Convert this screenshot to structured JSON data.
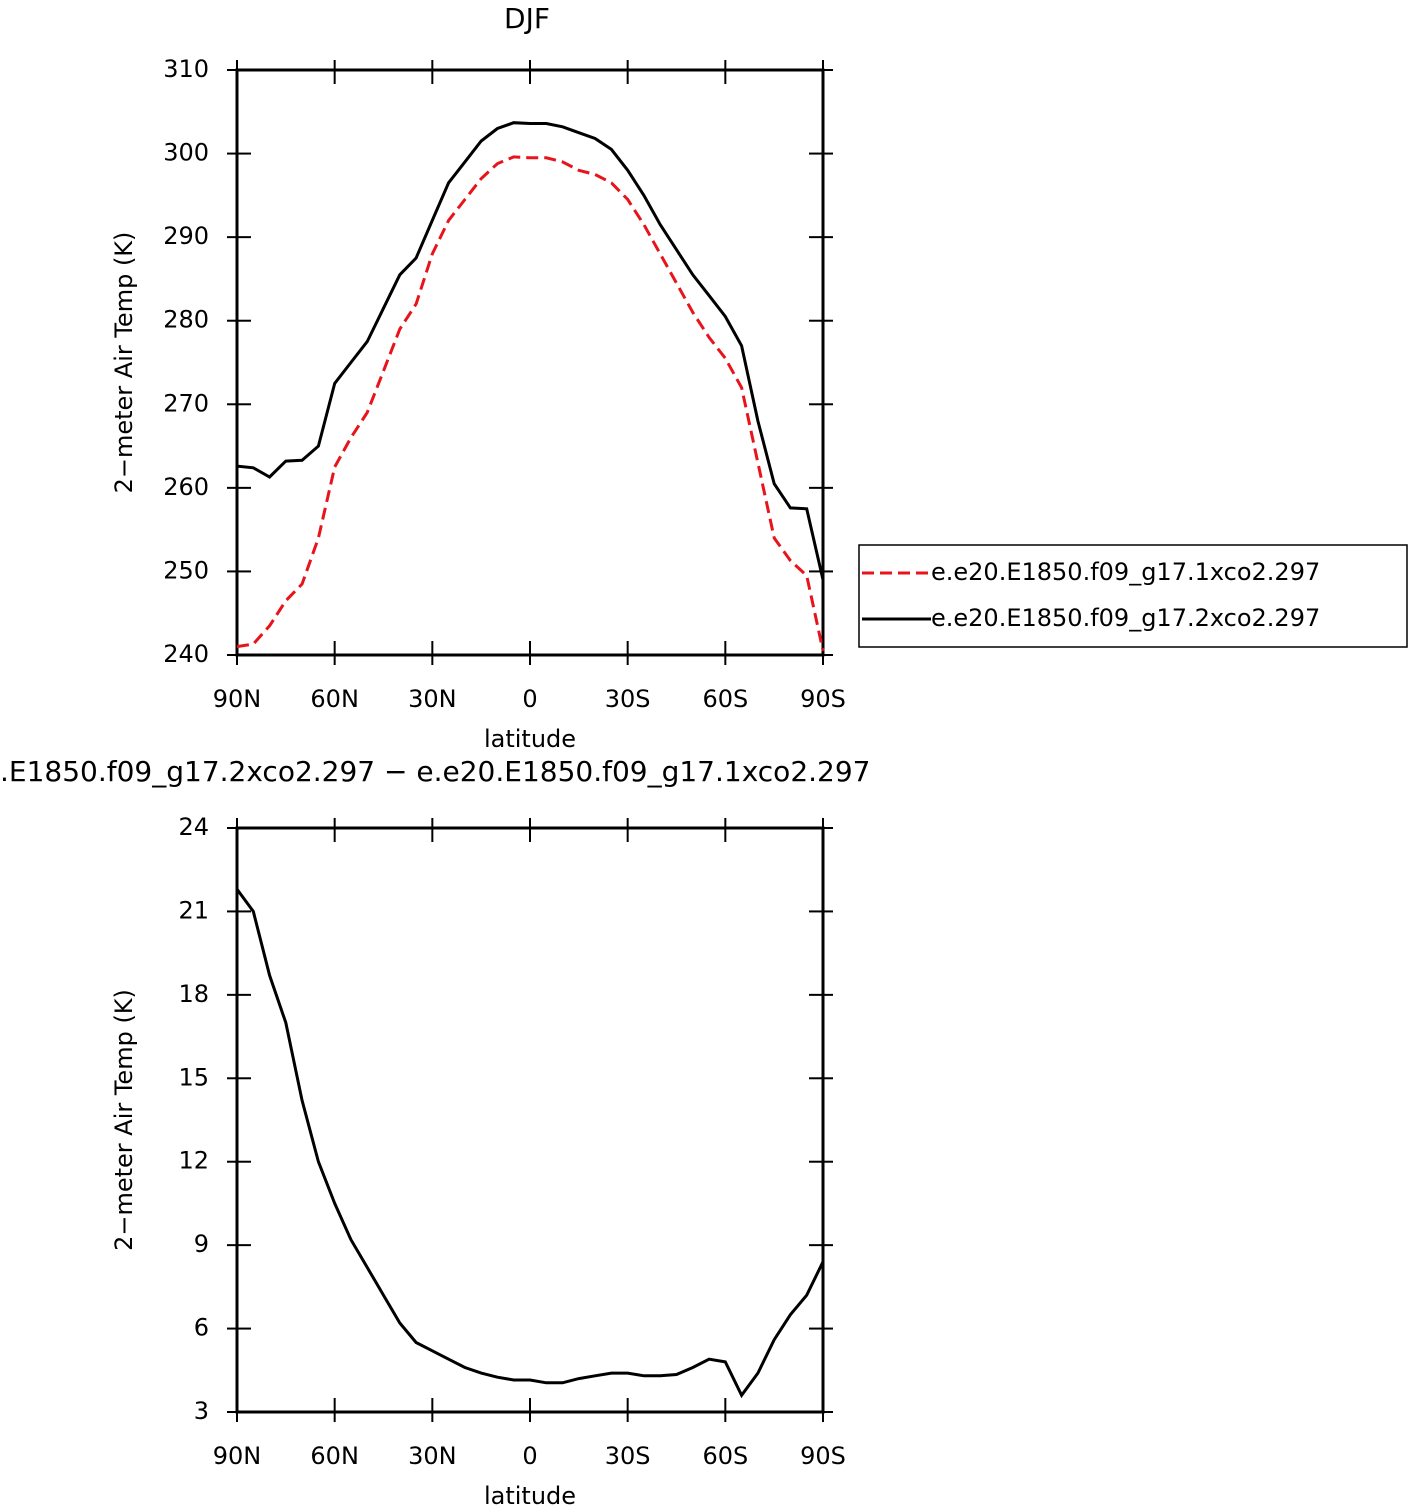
{
  "chart_data": [
    {
      "type": "line",
      "title": "DJF",
      "xlabel": "latitude",
      "ylabel": "2−meter Air Temp (K)",
      "x": [
        90,
        85,
        80,
        75,
        70,
        65,
        60,
        55,
        50,
        45,
        40,
        35,
        30,
        25,
        20,
        15,
        10,
        5,
        0,
        -5,
        -10,
        -15,
        -20,
        -25,
        -30,
        -35,
        -40,
        -45,
        -50,
        -55,
        -60,
        -65,
        -70,
        -75,
        -80,
        -85,
        -90
      ],
      "series": [
        {
          "name": "e.e20.E1850.f09_g17.1xco2.297",
          "color": "#e8141b",
          "style": "dashed",
          "values": [
            241,
            241.3,
            243.5,
            246.5,
            248.5,
            254,
            262.5,
            266,
            269,
            274,
            279,
            282,
            288,
            292,
            294.5,
            297,
            298.8,
            299.6,
            299.5,
            299.5,
            299,
            298,
            297.5,
            296.5,
            294.5,
            291.5,
            288,
            284.5,
            281,
            278,
            275.5,
            272,
            263,
            254,
            251.3,
            249.5,
            240.5
          ]
        },
        {
          "name": "e.e20.E1850.f09_g17.2xco2.297",
          "color": "#000000",
          "style": "solid",
          "values": [
            262.6,
            262.4,
            261.3,
            263.2,
            263.3,
            265,
            272.5,
            275,
            277.5,
            281.5,
            285.5,
            287.5,
            292,
            296.5,
            299,
            301.5,
            303,
            303.7,
            303.6,
            303.6,
            303.2,
            302.5,
            301.8,
            300.5,
            298,
            295,
            291.5,
            288.5,
            285.5,
            283,
            280.5,
            277,
            268,
            260.5,
            257.6,
            257.5,
            249
          ]
        }
      ],
      "xlim": [
        90,
        -90
      ],
      "xticks": [
        {
          "value": 90,
          "label": "90N"
        },
        {
          "value": 60,
          "label": "60N"
        },
        {
          "value": 30,
          "label": "30N"
        },
        0,
        {
          "value": -30,
          "label": "30S"
        },
        {
          "value": -60,
          "label": "60S"
        },
        {
          "value": -90,
          "label": "90S"
        }
      ],
      "ylim": [
        240,
        310
      ],
      "yticks": [
        240,
        250,
        260,
        270,
        280,
        290,
        300,
        310
      ],
      "legend": "right"
    },
    {
      "type": "line",
      "title": ".E1850.f09_g17.2xco2.297 − e.e20.E1850.f09_g17.1xco2.297",
      "xlabel": "latitude",
      "ylabel": "2−meter Air Temp (K)",
      "x": [
        90,
        85,
        80,
        75,
        70,
        65,
        60,
        55,
        50,
        45,
        40,
        35,
        30,
        25,
        20,
        15,
        10,
        5,
        0,
        -5,
        -10,
        -15,
        -20,
        -25,
        -30,
        -35,
        -40,
        -45,
        -50,
        -55,
        -60,
        -65,
        -70,
        -75,
        -80,
        -85,
        -90
      ],
      "series": [
        {
          "color": "#000000",
          "style": "solid",
          "values": [
            21.8,
            21,
            18.7,
            17,
            14.2,
            12,
            10.5,
            9.2,
            8.2,
            7.2,
            6.2,
            5.5,
            5.2,
            4.9,
            4.6,
            4.4,
            4.25,
            4.15,
            4.15,
            4.05,
            4.05,
            4.2,
            4.3,
            4.4,
            4.4,
            4.3,
            4.3,
            4.35,
            4.6,
            4.9,
            4.8,
            3.6,
            4.4,
            5.6,
            6.5,
            7.2,
            8.4
          ]
        }
      ],
      "xlim": [
        90,
        -90
      ],
      "xticks": [
        {
          "value": 90,
          "label": "90N"
        },
        {
          "value": 60,
          "label": "60N"
        },
        {
          "value": 30,
          "label": "30N"
        },
        0,
        {
          "value": -30,
          "label": "30S"
        },
        {
          "value": -60,
          "label": "60S"
        },
        {
          "value": -90,
          "label": "90S"
        }
      ],
      "ylim": [
        3,
        24
      ],
      "yticks": [
        3,
        6,
        9,
        12,
        15,
        18,
        21,
        24
      ]
    }
  ]
}
